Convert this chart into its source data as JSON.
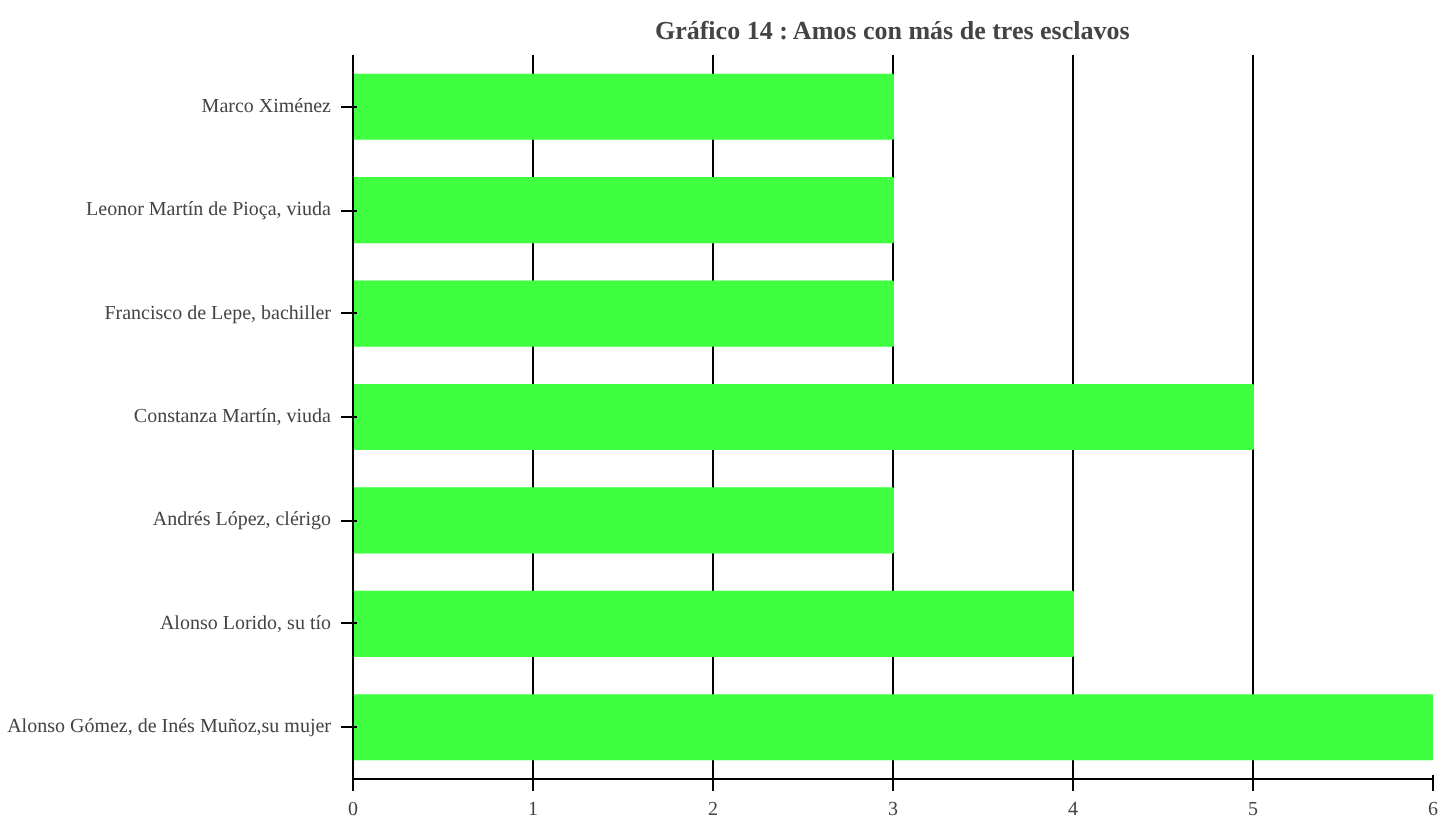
{
  "chart_data": {
    "type": "bar",
    "orientation": "horizontal",
    "title": "Gráfico 14 : Amos con más de tres esclavos",
    "categories": [
      "Marco Ximénez",
      "Leonor Martín de Pioça, viuda",
      "Francisco de Lepe, bachiller",
      "Constanza Martín, viuda",
      "Andrés López, clérigo",
      "Alonso Lorido, su tío",
      "Alonso Gómez, de Inés Muñoz,su mujer"
    ],
    "values": [
      3,
      3,
      3,
      5,
      3,
      4,
      6
    ],
    "color": "#40ff40",
    "xlim": [
      0,
      6
    ],
    "xticks": [
      0,
      1,
      2,
      3,
      4,
      5,
      6
    ],
    "grid": "x"
  }
}
